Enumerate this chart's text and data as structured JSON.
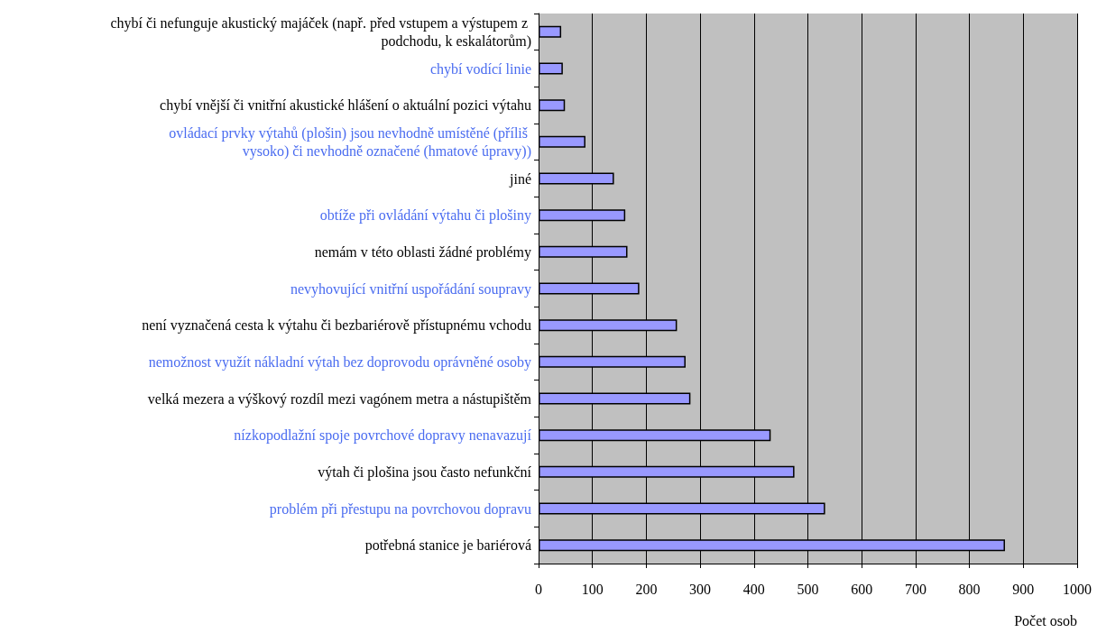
{
  "chart_data": {
    "type": "bar",
    "orientation": "horizontal",
    "xlabel": "Počet osob",
    "categories": [
      "chybí či nefunguje akustický majáček (např. před vstupem a výstupem z podchodu, k eskalátorům)",
      "chybí vodící linie",
      "chybí vnější či vnitřní akustické hlášení o aktuální pozici výtahu",
      "ovládací prvky výtahů (plošin) jsou nevhodně umístěné (příliš vysoko) či nevhodně označené (hmatové úpravy))",
      "jiné",
      "obtíže při ovládání výtahu či plošiny",
      "nemám v této oblasti žádné problémy",
      "nevyhovující vnitřní uspořádání soupravy",
      "není vyznačená cesta k výtahu či bezbariérově přístupnému vchodu",
      "nemožnost využít nákladní výtah bez doprovodu oprávněné osoby",
      "velká mezera a výškový rozdíl mezi vagónem metra a nástupištěm",
      "nízkopodlažní spoje povrchové dopravy nenavazují",
      "výtah či plošina jsou často nefunkční",
      "problém při přestupu na povrchovou dopravu",
      "potřebná stanice je bariérová"
    ],
    "values": [
      42,
      45,
      49,
      87,
      140,
      161,
      165,
      187,
      257,
      273,
      282,
      431,
      475,
      532,
      866
    ],
    "color": "#9999ff",
    "xlim": [
      0,
      1000
    ],
    "xticks": [
      0,
      100,
      200,
      300,
      400,
      500,
      600,
      700,
      800,
      900,
      1000
    ],
    "grid": "x"
  }
}
